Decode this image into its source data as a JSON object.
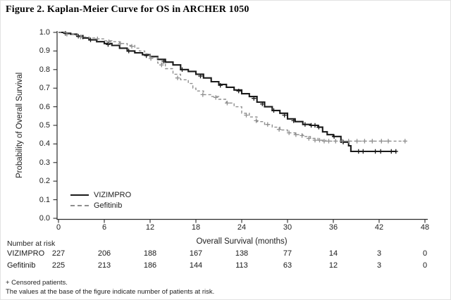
{
  "chart_data": {
    "type": "line",
    "subtype": "kaplan-meier-step",
    "title": "Figure 2. Kaplan-Meier Curve for OS in ARCHER 1050",
    "xlabel": "Overall Survival (months)",
    "ylabel": "Probability of Overall Survival",
    "xlim": [
      0,
      48
    ],
    "ylim": [
      0,
      1
    ],
    "x_ticks": [
      "0",
      "6",
      "12",
      "18",
      "24",
      "30",
      "36",
      "42",
      "48"
    ],
    "y_ticks": [
      "0.0",
      "0.1",
      "0.2",
      "0.3",
      "0.4",
      "0.5",
      "0.6",
      "0.7",
      "0.8",
      "0.9",
      "1.0"
    ],
    "grid": false,
    "legend_position": "inside lower-left",
    "censor_marker": "+",
    "series": [
      {
        "name": "VIZIMPRO",
        "style": "solid",
        "color": "#1a1a1a",
        "points": [
          [
            0,
            1.0
          ],
          [
            0.8,
            0.995
          ],
          [
            1.6,
            0.99
          ],
          [
            2.4,
            0.98
          ],
          [
            3.2,
            0.97
          ],
          [
            4,
            0.96
          ],
          [
            5,
            0.95
          ],
          [
            6,
            0.94
          ],
          [
            7,
            0.93
          ],
          [
            8,
            0.915
          ],
          [
            9,
            0.9
          ],
          [
            10,
            0.89
          ],
          [
            11,
            0.88
          ],
          [
            12,
            0.87
          ],
          [
            13,
            0.855
          ],
          [
            14,
            0.84
          ],
          [
            15,
            0.825
          ],
          [
            16,
            0.8
          ],
          [
            17,
            0.79
          ],
          [
            18,
            0.775
          ],
          [
            19,
            0.755
          ],
          [
            20,
            0.735
          ],
          [
            21,
            0.72
          ],
          [
            22,
            0.705
          ],
          [
            23,
            0.69
          ],
          [
            24,
            0.67
          ],
          [
            25,
            0.655
          ],
          [
            26,
            0.625
          ],
          [
            27,
            0.6
          ],
          [
            28,
            0.58
          ],
          [
            29,
            0.565
          ],
          [
            30,
            0.535
          ],
          [
            31,
            0.52
          ],
          [
            32,
            0.505
          ],
          [
            33,
            0.5
          ],
          [
            34,
            0.49
          ],
          [
            34.6,
            0.465
          ],
          [
            35.2,
            0.45
          ],
          [
            36,
            0.44
          ],
          [
            37,
            0.41
          ],
          [
            38,
            0.39
          ],
          [
            38.3,
            0.36
          ],
          [
            44.3,
            0.36
          ]
        ],
        "censor_marks": [
          [
            0.9,
            0.995
          ],
          [
            2.6,
            0.98
          ],
          [
            3.2,
            0.975
          ],
          [
            4.2,
            0.96
          ],
          [
            6.5,
            0.935
          ],
          [
            9.2,
            0.9
          ],
          [
            11.5,
            0.875
          ],
          [
            13.8,
            0.845
          ],
          [
            16.2,
            0.8
          ],
          [
            18.6,
            0.765
          ],
          [
            21.2,
            0.715
          ],
          [
            23.6,
            0.685
          ],
          [
            25.6,
            0.645
          ],
          [
            26.7,
            0.615
          ],
          [
            28.2,
            0.58
          ],
          [
            29.6,
            0.555
          ],
          [
            30.8,
            0.525
          ],
          [
            32.3,
            0.505
          ],
          [
            33.1,
            0.5
          ],
          [
            33.6,
            0.5
          ],
          [
            34.1,
            0.49
          ],
          [
            36.1,
            0.44
          ],
          [
            37.3,
            0.41
          ],
          [
            39.3,
            0.36
          ],
          [
            39.9,
            0.36
          ],
          [
            41.5,
            0.36
          ],
          [
            42.2,
            0.36
          ],
          [
            43.6,
            0.36
          ],
          [
            44.2,
            0.36
          ]
        ]
      },
      {
        "name": "Gefitinib",
        "style": "dashed",
        "color": "#8f8f8f",
        "points": [
          [
            0,
            1.0
          ],
          [
            1,
            0.99
          ],
          [
            2,
            0.985
          ],
          [
            3,
            0.975
          ],
          [
            4,
            0.97
          ],
          [
            5,
            0.965
          ],
          [
            6,
            0.955
          ],
          [
            7,
            0.95
          ],
          [
            8,
            0.94
          ],
          [
            9,
            0.93
          ],
          [
            10,
            0.915
          ],
          [
            10.6,
            0.9
          ],
          [
            11.3,
            0.885
          ],
          [
            12,
            0.865
          ],
          [
            13,
            0.835
          ],
          [
            14,
            0.805
          ],
          [
            15,
            0.775
          ],
          [
            16,
            0.745
          ],
          [
            17,
            0.725
          ],
          [
            17.6,
            0.7
          ],
          [
            18,
            0.685
          ],
          [
            19,
            0.665
          ],
          [
            20,
            0.655
          ],
          [
            21,
            0.64
          ],
          [
            22,
            0.62
          ],
          [
            23,
            0.6
          ],
          [
            24,
            0.565
          ],
          [
            25,
            0.545
          ],
          [
            26,
            0.52
          ],
          [
            27,
            0.505
          ],
          [
            28,
            0.49
          ],
          [
            29,
            0.475
          ],
          [
            30,
            0.46
          ],
          [
            31,
            0.45
          ],
          [
            32,
            0.44
          ],
          [
            33,
            0.43
          ],
          [
            34,
            0.42
          ],
          [
            35,
            0.415
          ],
          [
            45.4,
            0.415
          ]
        ],
        "censor_marks": [
          [
            1.1,
            0.99
          ],
          [
            2.9,
            0.975
          ],
          [
            5.1,
            0.965
          ],
          [
            6.6,
            0.95
          ],
          [
            8.1,
            0.94
          ],
          [
            9.6,
            0.925
          ],
          [
            12.1,
            0.86
          ],
          [
            13.5,
            0.825
          ],
          [
            15.6,
            0.755
          ],
          [
            18.9,
            0.665
          ],
          [
            20.6,
            0.65
          ],
          [
            22.1,
            0.62
          ],
          [
            24.6,
            0.555
          ],
          [
            25.9,
            0.525
          ],
          [
            27.4,
            0.505
          ],
          [
            28.9,
            0.478
          ],
          [
            30.2,
            0.46
          ],
          [
            31.1,
            0.45
          ],
          [
            31.9,
            0.445
          ],
          [
            32.8,
            0.43
          ],
          [
            33.6,
            0.42
          ],
          [
            34.2,
            0.42
          ],
          [
            34.8,
            0.415
          ],
          [
            35.4,
            0.415
          ],
          [
            36.3,
            0.415
          ],
          [
            37.2,
            0.415
          ],
          [
            38.0,
            0.415
          ],
          [
            39.1,
            0.415
          ],
          [
            40.1,
            0.415
          ],
          [
            41.1,
            0.415
          ],
          [
            42.3,
            0.415
          ],
          [
            43.2,
            0.415
          ],
          [
            45.4,
            0.415
          ]
        ]
      }
    ],
    "number_at_risk": {
      "label": "Number at risk",
      "time_points": [
        0,
        6,
        12,
        18,
        24,
        30,
        36,
        42,
        48
      ],
      "rows": [
        {
          "name": "VIZIMPRO",
          "values": [
            "227",
            "206",
            "188",
            "167",
            "138",
            "77",
            "14",
            "3",
            "0"
          ]
        },
        {
          "name": "Gefitinib",
          "values": [
            "225",
            "213",
            "186",
            "144",
            "113",
            "63",
            "12",
            "3",
            "0"
          ]
        }
      ]
    },
    "footnotes": [
      "+ Censored patients.",
      "The values at the base of the figure indicate number of patients at risk."
    ]
  }
}
